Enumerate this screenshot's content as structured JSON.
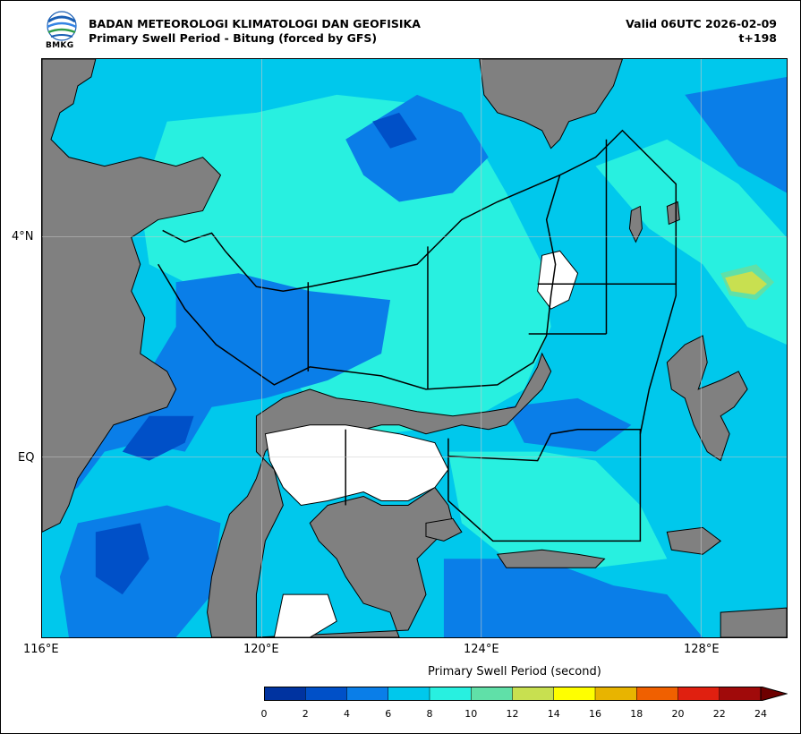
{
  "header": {
    "org": "BADAN METEOROLOGI KLIMATOLOGI DAN GEOFISIKA",
    "subtitle": "Primary Swell Period - Bitung (forced by GFS)",
    "valid": "Valid 06UTC 2026-02-09",
    "step": "t+198",
    "logo_text": "BMKG"
  },
  "map": {
    "lon_ticks": [
      "116°E",
      "120°E",
      "124°E",
      "128°E"
    ],
    "lat_ticks": [
      "4°N",
      "EQ"
    ],
    "land_color": "#808080",
    "water_mask_color": "#ffffff"
  },
  "colorbar": {
    "title": "Primary Swell Period (second)",
    "labels": [
      "0",
      "2",
      "4",
      "6",
      "8",
      "10",
      "12",
      "14",
      "16",
      "18",
      "20",
      "22",
      "24"
    ],
    "colors": [
      "#0033a0",
      "#0050c8",
      "#0a7ee8",
      "#00c8ec",
      "#28f0e0",
      "#60e0a8",
      "#c8e050",
      "#ffff00",
      "#e8b400",
      "#f06000",
      "#e02010",
      "#a00a0a",
      "#6e0000"
    ],
    "extend": "max"
  }
}
